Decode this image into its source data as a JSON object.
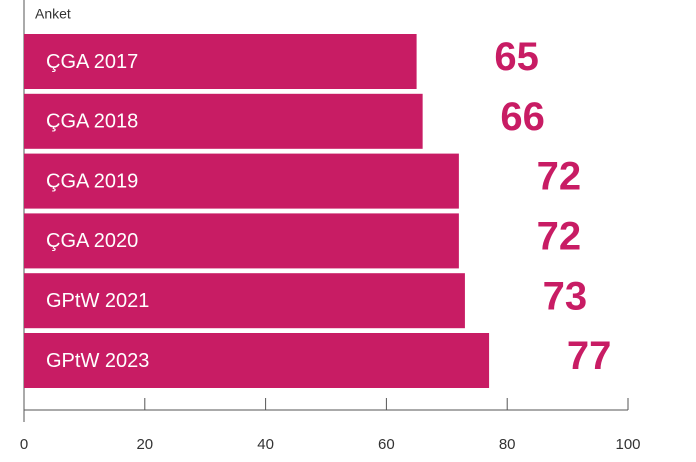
{
  "chart_data": {
    "type": "bar",
    "orientation": "horizontal",
    "title": "Anket",
    "categories": [
      "ÇGA 2017",
      "ÇGA 2018",
      "ÇGA 2019",
      "ÇGA 2020",
      "GPtW 2021",
      "GPtW 2023"
    ],
    "values": [
      65,
      66,
      72,
      72,
      73,
      77
    ],
    "color": "#c81c64",
    "xlim": [
      0,
      100
    ],
    "xticks": [
      0,
      20,
      40,
      60,
      80,
      100
    ]
  }
}
